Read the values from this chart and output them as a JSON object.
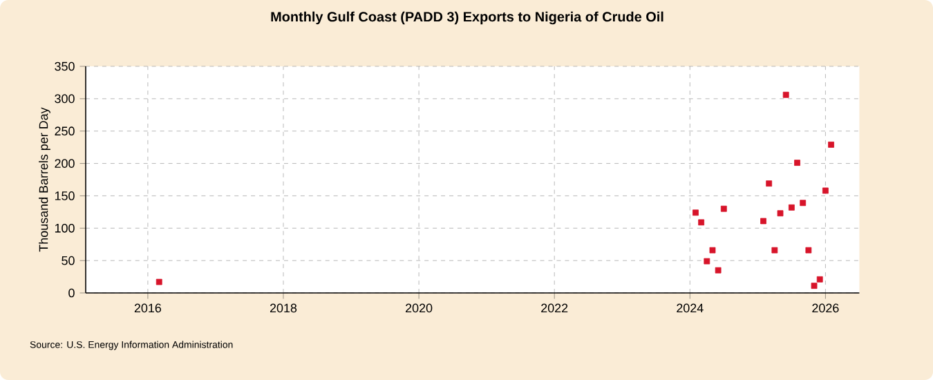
{
  "chart_data": {
    "type": "scatter",
    "title": "Monthly Gulf Coast (PADD 3) Exports to Nigeria of Crude Oil",
    "ylabel": "Thousand Barrels per Day",
    "annotations": [
      "Source: U.S. Energy Information Administration"
    ],
    "x": [
      "2016-03",
      "2024-02",
      "2024-03",
      "2024-04",
      "2024-05",
      "2024-06",
      "2024-07",
      "2025-02",
      "2025-03",
      "2025-04",
      "2025-05",
      "2025-06",
      "2025-07",
      "2025-08",
      "2025-09",
      "2025-10",
      "2025-11",
      "2025-12",
      "2026-01",
      "2026-02"
    ],
    "values": [
      17,
      124,
      109,
      49,
      66,
      35,
      130,
      111,
      169,
      66,
      123,
      306,
      132,
      201,
      139,
      66,
      11,
      21,
      158,
      229
    ],
    "color": "#d7142a",
    "marker": "square",
    "xlim": [
      "2015-02",
      "2026-07"
    ],
    "xticks": [
      "2016",
      "2018",
      "2020",
      "2022",
      "2024",
      "2026"
    ],
    "ylim": [
      0,
      350
    ],
    "yticks": [
      0,
      50,
      100,
      150,
      200,
      250,
      300,
      350
    ],
    "grid": true
  }
}
